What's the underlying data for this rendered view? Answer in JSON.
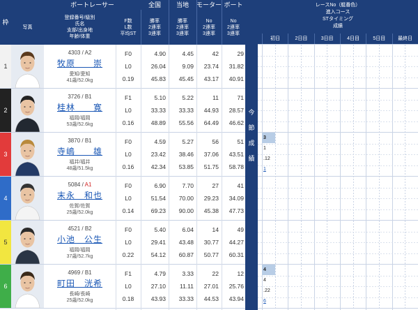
{
  "header": {
    "waku": "枠",
    "photo": "写真",
    "boat_racer": "ボートレーサー",
    "reg_info": [
      "登録番号/級別",
      "氏名",
      "支部/出身地",
      "年齢/体重"
    ],
    "f_info": [
      "F数",
      "L数",
      "平均ST"
    ],
    "zenkoku": "全国",
    "zenkoku_sub": [
      "勝率",
      "2連率",
      "3連率"
    ],
    "tochi": "当地",
    "tochi_sub": [
      "勝率",
      "2連率",
      "3連率"
    ],
    "motor": "モーター",
    "motor_sub": [
      "No",
      "2連率",
      "3連率"
    ],
    "boat": "ボート",
    "boat_sub": [
      "No",
      "2連率",
      "3連率"
    ]
  },
  "middle_label": [
    "今",
    "節",
    "成",
    "績"
  ],
  "right_header": {
    "lines": [
      "レースNo（艇番色）",
      "進入コース",
      "STタイミング",
      "成績"
    ],
    "days": [
      "初日",
      "2日目",
      "3日目",
      "4日目",
      "5日目",
      "最終日"
    ]
  },
  "racers": [
    {
      "waku": "1",
      "waku_bg": "#f2f2f2",
      "waku_fg": "#333333",
      "reg": "4303",
      "cls": "A2",
      "cls_color": "#444444",
      "name": "牧原　　崇",
      "branch": "愛知/愛知",
      "age_weight": "41歳/52.0kg",
      "f": "F0",
      "l": "L0",
      "st": "0.19",
      "zen": [
        "4.90",
        "26.04",
        "45.83"
      ],
      "toch": [
        "4.45",
        "9.09",
        "45.45"
      ],
      "motor": [
        "42",
        "23.74",
        "43.17"
      ],
      "boat": [
        "29",
        "31.82",
        "40.91"
      ],
      "results": []
    },
    {
      "waku": "2",
      "waku_bg": "#222222",
      "waku_fg": "#ffffff",
      "reg": "3726",
      "cls": "B1",
      "cls_color": "#444444",
      "name": "桂林　　寛",
      "branch": "福岡/福岡",
      "age_weight": "53歳/52.6kg",
      "f": "F1",
      "l": "L0",
      "st": "0.16",
      "zen": [
        "5.10",
        "33.33",
        "48.89"
      ],
      "toch": [
        "5.22",
        "33.33",
        "55.56"
      ],
      "motor": [
        "11",
        "44.93",
        "64.49"
      ],
      "boat": [
        "71",
        "28.57",
        "46.62"
      ],
      "results": []
    },
    {
      "waku": "3",
      "waku_bg": "#e23b3b",
      "waku_fg": "#ffffff",
      "reg": "3870",
      "cls": "B1",
      "cls_color": "#444444",
      "name": "寺嶋　　雄",
      "branch": "福井/福井",
      "age_weight": "48歳/51.5kg",
      "f": "F0",
      "l": "L0",
      "st": "0.16",
      "zen": [
        "4.59",
        "23.42",
        "42.34"
      ],
      "toch": [
        "5.27",
        "38.46",
        "53.85"
      ],
      "motor": [
        "56",
        "37.06",
        "51.75"
      ],
      "boat": [
        "51",
        "43.51",
        "58.78"
      ],
      "results": [
        {
          "col": 0,
          "vals": [
            "3",
            "1",
            ".12",
            "1"
          ],
          "hl": [
            0
          ],
          "link": [
            3
          ]
        }
      ]
    },
    {
      "waku": "4",
      "waku_bg": "#2f6cc8",
      "waku_fg": "#ffffff",
      "reg": "5084",
      "cls": "A1",
      "cls_color": "#d22222",
      "name": "末永　和也",
      "branch": "佐賀/佐賀",
      "age_weight": "25歳/52.0kg",
      "f": "F0",
      "l": "L0",
      "st": "0.14",
      "zen": [
        "6.90",
        "51.54",
        "69.23"
      ],
      "toch": [
        "7.70",
        "70.00",
        "90.00"
      ],
      "motor": [
        "27",
        "29.23",
        "45.38"
      ],
      "boat": [
        "41",
        "34.09",
        "47.73"
      ],
      "results": []
    },
    {
      "waku": "5",
      "waku_bg": "#f2e640",
      "waku_fg": "#333333",
      "reg": "4521",
      "cls": "B2",
      "cls_color": "#444444",
      "name": "小池　公生",
      "branch": "福岡/福岡",
      "age_weight": "37歳/52.7kg",
      "f": "F0",
      "l": "L0",
      "st": "0.22",
      "zen": [
        "5.40",
        "29.41",
        "54.12"
      ],
      "toch": [
        "6.04",
        "43.48",
        "60.87"
      ],
      "motor": [
        "14",
        "30.77",
        "50.77"
      ],
      "boat": [
        "49",
        "44.27",
        "60.31"
      ],
      "results": []
    },
    {
      "waku": "6",
      "waku_bg": "#3fae49",
      "waku_fg": "#ffffff",
      "reg": "4969",
      "cls": "B1",
      "cls_color": "#444444",
      "name": "町田　洸希",
      "branch": "長崎/長崎",
      "age_weight": "25歳/52.0kg",
      "f": "F1",
      "l": "L0",
      "st": "0.18",
      "zen": [
        "4.79",
        "27.10",
        "43.93"
      ],
      "toch": [
        "3.33",
        "11.11",
        "33.33"
      ],
      "motor": [
        "22",
        "27.01",
        "44.53"
      ],
      "boat": [
        "12",
        "25.76",
        "43.94"
      ],
      "results": [
        {
          "col": 0,
          "vals": [
            "4",
            "4",
            ".22",
            "6"
          ],
          "hl": [
            0
          ],
          "link": [
            3
          ]
        }
      ]
    }
  ]
}
